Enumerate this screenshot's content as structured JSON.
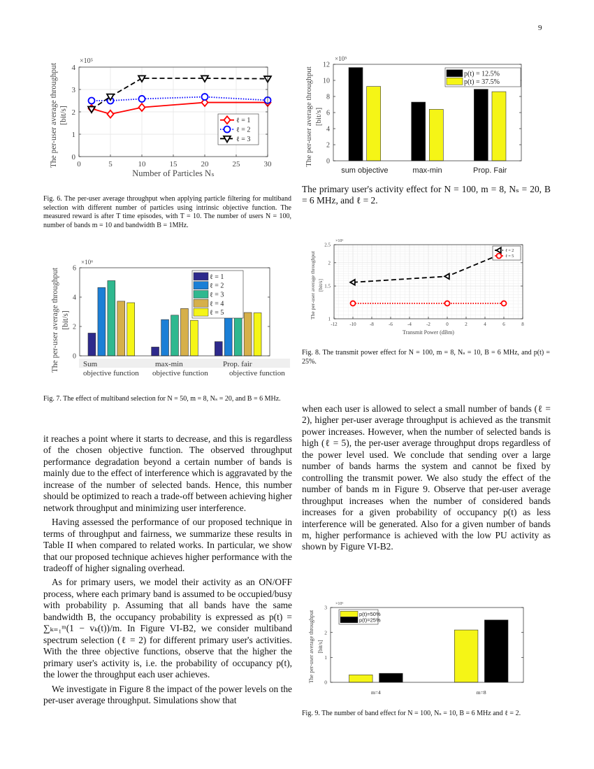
{
  "page_number": "9",
  "captions": {
    "fig6": "Fig. 6.  The per-user average throughput when applying particle filtering for multiband selection with different number of particles using intrinsic objective function. The measured reward is after T time episodes, with T = 10. The number of users N = 100, number of bands m = 10 and bandwidth B = 1MHz.",
    "fig7": "Fig. 7.  The effect of multiband selection for N = 50, m = 8, Nₛ = 20, and B = 6 MHz.",
    "pu_activity": "The primary user's activity effect for N = 100, m = 8, Nₛ = 20, B = 6 MHz, and ℓ = 2.",
    "fig8": "Fig. 8.  The transmit power effect for N = 100, m = 8, Nₛ = 10, B = 6 MHz, and p(t) = 25%.",
    "fig9": "Fig. 9.  The number of band effect for N = 100, Nₛ = 10, B = 6 MHz and ℓ = 2."
  },
  "left_text": [
    "it reaches a point where it starts to decrease, and this is regardless of the chosen objective function. The observed throughput performance degradation beyond a certain number of bands is mainly due to the effect of interference which is aggravated by the increase of the number of selected bands. Hence, this number should be optimized to reach a trade-off between achieving higher network throughput and minimizing user interference.",
    "Having assessed the performance of our proposed technique in terms of throughput and fairness, we summarize these results in Table II when compared to related works. In particular, we show that our proposed technique achieves higher performance with the tradeoff of higher signaling overhead.",
    "As for primary users, we model their activity as an ON/OFF process, where each primary band is assumed to be occupied/busy with probability p. Assuming that all bands have the same bandwidth B, the occupancy probability is expressed as p(t) = ∑ₖ₌₁ᵐ(1 − vₖ(t))/m. In Figure VI-B2, we consider multiband spectrum selection (ℓ = 2) for different primary user's activities. With the three objective functions, observe that the higher the primary user's activity is, i.e. the probability of occupancy p(t), the lower the throughput each user achieves.",
    "We investigate in Figure 8 the impact of the power levels on the per-user average throughput. Simulations show that"
  ],
  "right_text": [
    "when each user is allowed to select a small number of bands (ℓ = 2), higher per-user average throughput is achieved as the transmit power increases. However, when the number of selected bands is high (ℓ = 5), the per-user average throughput drops regardless of the power level used. We conclude that sending over a large number of bands harms the system and cannot be fixed by controlling the transmit power. We also study the effect of the number of bands m in Figure 9. Observe that per-user average throughput increases when the number of considered bands increases for a given probability of occupancy p(t) as less interference will be generated. Also for a given number of bands m, higher performance is achieved with the low PU activity as shown by Figure VI-B2."
  ],
  "chart_data": [
    {
      "type": "line",
      "xlabel": "Number of Particles Nₛ",
      "ylabel": [
        "The per-user average throughput",
        "[bit/s]"
      ],
      "multiplier": "×10⁵",
      "x": [
        2,
        5,
        10,
        20,
        30
      ],
      "xlim": [
        0,
        30
      ],
      "ylim": [
        0,
        4
      ],
      "xticks": [
        "0",
        "5",
        "10",
        "15",
        "20",
        "25",
        "30"
      ],
      "yticks": [
        "0",
        "1",
        "2",
        "3",
        "4"
      ],
      "grid": true,
      "legend_position": "right",
      "series": [
        {
          "name": "ℓ = 1",
          "values": [
            2.15,
            1.9,
            2.2,
            2.42,
            2.42
          ],
          "color": "#ff0000",
          "style": "solid",
          "marker": "diamond"
        },
        {
          "name": "ℓ = 2",
          "values": [
            2.5,
            2.5,
            2.58,
            2.67,
            2.52
          ],
          "color": "#0000ff",
          "style": "dotted",
          "marker": "circle"
        },
        {
          "name": "ℓ = 3",
          "values": [
            2.12,
            2.68,
            3.5,
            3.5,
            3.48
          ],
          "color": "#000000",
          "style": "dashed",
          "marker": "triangle-down"
        }
      ]
    },
    {
      "type": "bar",
      "ylabel": [
        "The per-user average throughput",
        "[bit/s]"
      ],
      "multiplier": "×10⁶",
      "categories": [
        [
          "Sum",
          "objective function"
        ],
        [
          "max-min",
          "objective function"
        ],
        [
          "Prop. fair",
          "objective function"
        ]
      ],
      "ylim": [
        0,
        6
      ],
      "yticks": [
        "0",
        "2",
        "4",
        "6"
      ],
      "grid": false,
      "legend_position": "top-right",
      "series": [
        {
          "name": "ℓ = 1",
          "values": [
            1.55,
            0.6,
            0.97
          ],
          "color": "#2e2a8c"
        },
        {
          "name": "ℓ = 2",
          "values": [
            4.65,
            2.47,
            2.77
          ],
          "color": "#1b7fd6"
        },
        {
          "name": "ℓ = 3",
          "values": [
            5.12,
            2.77,
            3.47
          ],
          "color": "#2fb88f"
        },
        {
          "name": "ℓ = 4",
          "values": [
            3.72,
            3.22,
            2.95
          ],
          "color": "#d6b04a"
        },
        {
          "name": "ℓ = 5",
          "values": [
            3.62,
            2.42,
            2.93
          ],
          "color": "#f5f516"
        }
      ]
    },
    {
      "type": "bar",
      "ylabel": [
        "The per-user average throughput",
        "[bit/s]"
      ],
      "multiplier": "×10⁵",
      "categories": [
        "sum objective",
        "max-min",
        "Prop. Fair"
      ],
      "ylim": [
        0,
        12
      ],
      "yticks": [
        "0",
        "2",
        "4",
        "6",
        "8",
        "10",
        "12"
      ],
      "grid": false,
      "legend_position": "top-right",
      "series": [
        {
          "name": "p(t) = 12.5%",
          "values": [
            11.6,
            7.3,
            8.9
          ],
          "color": "#000000"
        },
        {
          "name": "p(t) = 37.5%",
          "values": [
            9.25,
            6.4,
            8.6
          ],
          "color": "#f5f516"
        }
      ]
    },
    {
      "type": "line",
      "xlabel": "Transmit Power (dBm)",
      "ylabel": [
        "The per-user average throughput",
        "[bit/s]"
      ],
      "multiplier": "×10⁶",
      "x": [
        -10,
        0,
        6
      ],
      "xlim": [
        -12,
        8
      ],
      "ylim": [
        1,
        2.5
      ],
      "y_scale": "log",
      "xticks": [
        "-12",
        "-10",
        "-8",
        "-6",
        "-4",
        "-2",
        "0",
        "2",
        "4",
        "6",
        "8"
      ],
      "yticks": [
        "1",
        "1.5",
        "2",
        "2.5"
      ],
      "grid": true,
      "minor_grid": true,
      "legend_position": "top-right",
      "series": [
        {
          "name": "ℓ = 2",
          "values": [
            1.57,
            1.69,
            2.26
          ],
          "color": "#000000",
          "style": "dashed",
          "marker": "triangle-left"
        },
        {
          "name": "ℓ = 5",
          "values": [
            1.21,
            1.21,
            1.21
          ],
          "color": "#ff0000",
          "style": "dotted",
          "marker": "circle"
        }
      ]
    },
    {
      "type": "bar",
      "ylabel": [
        "The per-user average throughput",
        "[bit/s]"
      ],
      "multiplier": "×10⁶",
      "categories": [
        "m=4",
        "m=8"
      ],
      "xlim": [
        0.57,
        2.4
      ],
      "ylim": [
        0,
        3
      ],
      "yticks": [
        "0",
        "1",
        "2",
        "3"
      ],
      "grid": false,
      "legend_position": "top-left",
      "series": [
        {
          "name": "p(t)=50%",
          "values": [
            0.3,
            2.1
          ],
          "color": "#f5f516"
        },
        {
          "name": "p(t)=25%",
          "values": [
            0.36,
            2.5
          ],
          "color": "#000000"
        }
      ]
    }
  ]
}
